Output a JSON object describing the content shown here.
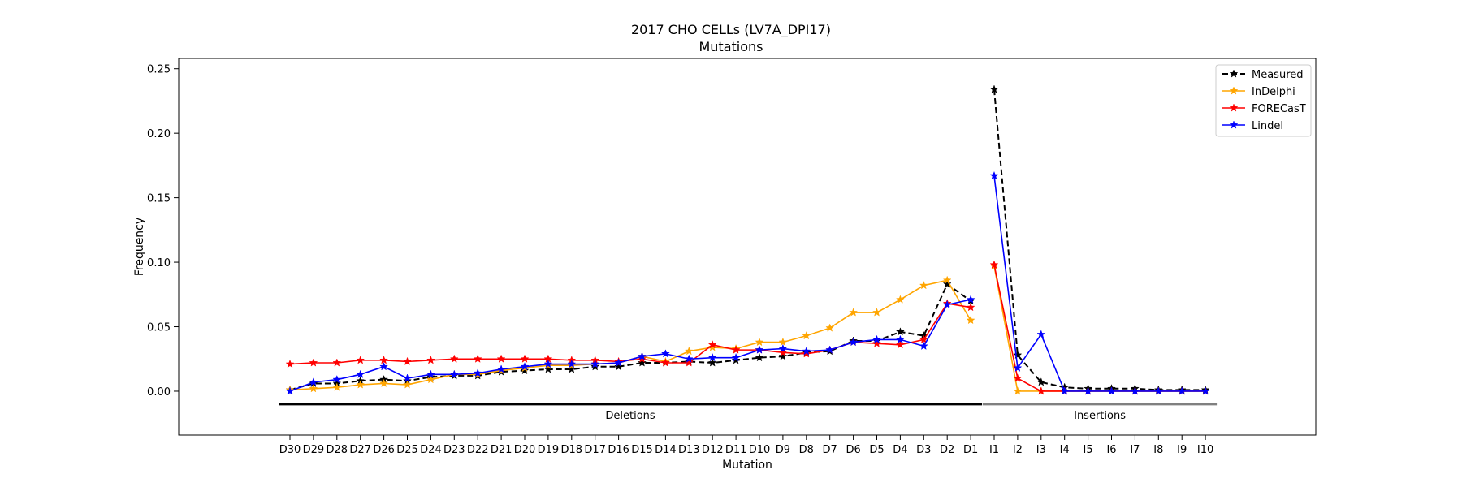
{
  "chart_data": {
    "type": "line",
    "title": "2017 CHO CELLs (LV7A_DPI17)",
    "subtitle": "Mutations",
    "xlabel": "Mutation",
    "ylabel": "Frequency",
    "ylim": [
      -0.034,
      0.258
    ],
    "yticks": [
      0.0,
      0.05,
      0.1,
      0.15,
      0.2,
      0.25
    ],
    "ytick_labels": [
      "0.00",
      "0.05",
      "0.10",
      "0.15",
      "0.20",
      "0.25"
    ],
    "grid": false,
    "legend_position": "top-right",
    "categories": [
      "D30",
      "D29",
      "D28",
      "D27",
      "D26",
      "D25",
      "D24",
      "D23",
      "D22",
      "D21",
      "D20",
      "D19",
      "D18",
      "D17",
      "D16",
      "D15",
      "D14",
      "D13",
      "D12",
      "D11",
      "D10",
      "D9",
      "D8",
      "D7",
      "D6",
      "D5",
      "D4",
      "D3",
      "D2",
      "D1",
      "I1",
      "I2",
      "I3",
      "I4",
      "I5",
      "I6",
      "I7",
      "I8",
      "I9",
      "I10"
    ],
    "groups": [
      {
        "label": "Deletions",
        "from": "D30",
        "to": "D1",
        "color": "#000000"
      },
      {
        "label": "Insertions",
        "from": "I1",
        "to": "I10",
        "color": "#808080"
      }
    ],
    "series": [
      {
        "name": "Measured",
        "color": "#000000",
        "dashed": true,
        "deletions": [
          0.001,
          0.006,
          0.006,
          0.008,
          0.009,
          0.008,
          0.011,
          0.012,
          0.012,
          0.015,
          0.016,
          0.017,
          0.017,
          0.019,
          0.019,
          0.022,
          0.022,
          0.023,
          0.022,
          0.024,
          0.026,
          0.027,
          0.03,
          0.031,
          0.039,
          0.039,
          0.046,
          0.043,
          0.083,
          0.07
        ],
        "insertions": [
          0.234,
          0.028,
          0.007,
          0.003,
          0.002,
          0.002,
          0.002,
          0.001,
          0.001,
          0.001
        ]
      },
      {
        "name": "InDelphi",
        "color": "#ffa500",
        "dashed": false,
        "deletions": [
          0.001,
          0.002,
          0.003,
          0.005,
          0.006,
          0.005,
          0.009,
          0.013,
          0.013,
          0.016,
          0.018,
          0.02,
          0.02,
          0.021,
          0.022,
          0.027,
          0.023,
          0.031,
          0.034,
          0.033,
          0.038,
          0.038,
          0.043,
          0.049,
          0.061,
          0.061,
          0.071,
          0.082,
          0.086,
          0.055
        ],
        "insertions": [
          0.097,
          0.0,
          0.0,
          0.0,
          0.0,
          0.0,
          0.0,
          0.0,
          0.0,
          0.0
        ]
      },
      {
        "name": "FORECasT",
        "color": "#ff0000",
        "dashed": false,
        "deletions": [
          0.021,
          0.022,
          0.022,
          0.024,
          0.024,
          0.023,
          0.024,
          0.025,
          0.025,
          0.025,
          0.025,
          0.025,
          0.024,
          0.024,
          0.023,
          0.025,
          0.022,
          0.022,
          0.036,
          0.032,
          0.032,
          0.03,
          0.029,
          0.032,
          0.038,
          0.037,
          0.036,
          0.04,
          0.068,
          0.065
        ],
        "insertions": [
          0.098,
          0.01,
          0.0,
          0.0,
          0.0,
          0.0,
          0.0,
          0.0,
          0.0,
          0.0
        ]
      },
      {
        "name": "Lindel",
        "color": "#0000ff",
        "dashed": false,
        "deletions": [
          0.0,
          0.007,
          0.009,
          0.013,
          0.019,
          0.01,
          0.013,
          0.013,
          0.014,
          0.017,
          0.019,
          0.021,
          0.021,
          0.021,
          0.022,
          0.027,
          0.029,
          0.025,
          0.026,
          0.026,
          0.032,
          0.033,
          0.031,
          0.032,
          0.038,
          0.04,
          0.04,
          0.035,
          0.067,
          0.071
        ],
        "insertions": [
          0.167,
          0.018,
          0.044,
          0.0,
          0.0,
          0.0,
          0.0,
          0.0,
          0.0,
          0.0
        ]
      }
    ]
  }
}
